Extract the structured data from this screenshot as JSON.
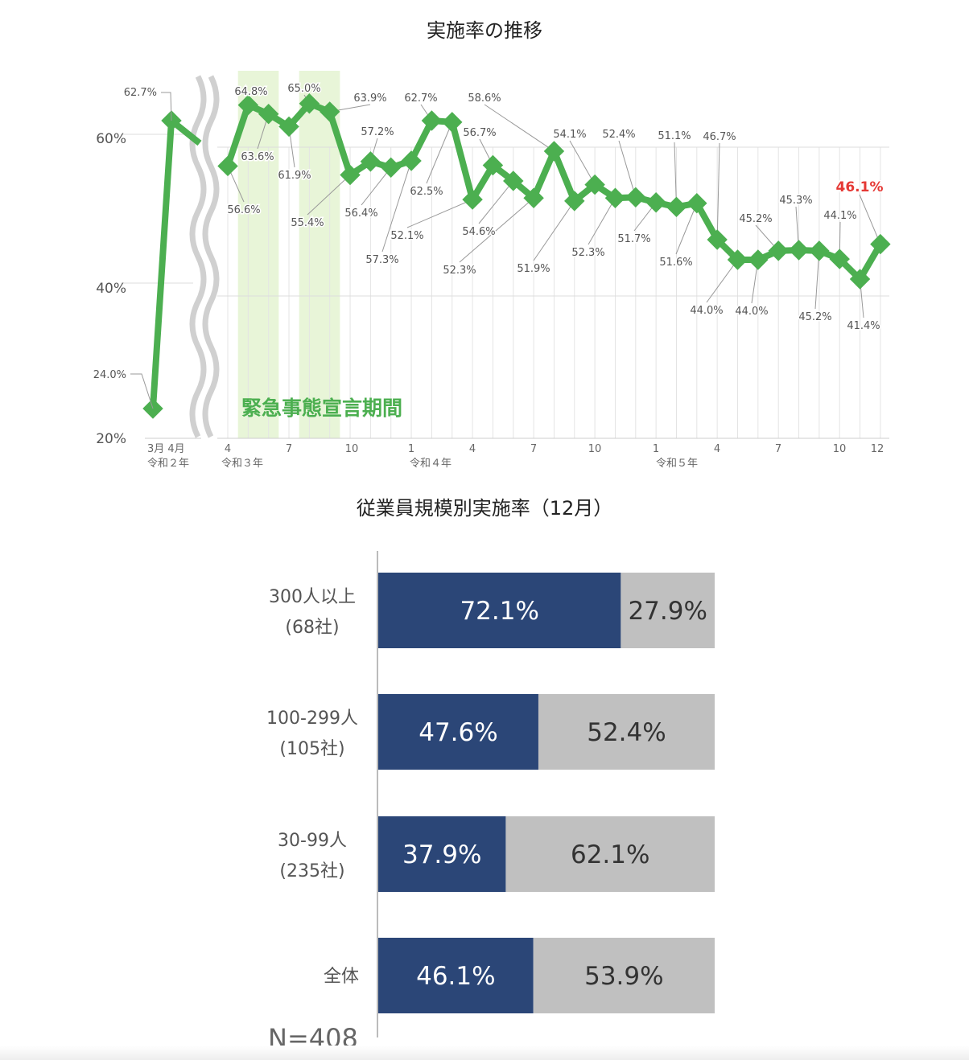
{
  "chart_data": [
    {
      "type": "line",
      "title": "実施率の推移",
      "y_ticks": [
        "20%",
        "40%",
        "60%"
      ],
      "ylim": [
        20,
        70
      ],
      "grid": true,
      "color": "#4caf50",
      "highlight_color": "#e53935",
      "shaded_label": "緊急事態宣言期間",
      "shaded_color": "#e8f5d8",
      "shaded_periods": [
        [
          "令和3年5月",
          "令和3年6月"
        ],
        [
          "令和3年8月",
          "令和3年9月"
        ]
      ],
      "segments": [
        {
          "x": [
            "令和2年3月",
            "令和2年4月"
          ],
          "values": [
            24.0,
            62.7
          ],
          "labels": [
            "24.0%",
            "62.7%"
          ]
        },
        {
          "x": [
            "令和3年4月",
            "令和3年5月",
            "令和3年6月",
            "令和3年7月",
            "令和3年8月",
            "令和3年9月",
            "令和3年10月",
            "令和3年11月",
            "令和3年12月",
            "令和4年1月",
            "令和4年2月",
            "令和4年3月",
            "令和4年4月",
            "令和4年5月",
            "令和4年6月",
            "令和4年7月",
            "令和4年8月",
            "令和4年9月",
            "令和4年10月",
            "令和4年11月",
            "令和4年12月",
            "令和5年1月",
            "令和5年2月",
            "令和5年3月",
            "令和5年4月",
            "令和5年5月",
            "令和5年6月",
            "令和5年7月",
            "令和5年8月",
            "令和5年9月",
            "令和5年10月",
            "令和5年11月",
            "令和5年12月"
          ],
          "values": [
            56.6,
            64.8,
            63.6,
            61.9,
            65.0,
            63.9,
            55.4,
            57.2,
            56.4,
            57.3,
            62.7,
            62.5,
            52.1,
            56.7,
            54.6,
            52.3,
            58.6,
            51.9,
            54.1,
            52.3,
            52.4,
            51.7,
            51.1,
            51.6,
            46.7,
            44.0,
            44.0,
            45.2,
            45.3,
            45.2,
            44.1,
            41.4,
            46.1
          ],
          "labels": [
            "56.6%",
            "64.8%",
            "63.6%",
            "61.9%",
            "65.0%",
            "63.9%",
            "55.4%",
            "57.2%",
            "56.4%",
            "57.3%",
            "62.7%",
            "62.5%",
            "52.1%",
            "56.7%",
            "54.6%",
            "52.3%",
            "58.6%",
            "51.9%",
            "54.1%",
            "52.3%",
            "52.4%",
            "51.7%",
            "51.1%",
            "51.6%",
            "46.7%",
            "44.0%",
            "44.0%",
            "45.2%",
            "45.3%",
            "45.2%",
            "44.1%",
            "41.4%",
            "46.1%"
          ]
        }
      ],
      "x_tick_labels": [
        {
          "month": "3月 4月",
          "year": "令和２年"
        },
        {
          "month": "4",
          "year": "令和３年"
        },
        {
          "month": "7",
          "year": ""
        },
        {
          "month": "10",
          "year": ""
        },
        {
          "month": "1",
          "year": "令和４年"
        },
        {
          "month": "4",
          "year": ""
        },
        {
          "month": "7",
          "year": ""
        },
        {
          "month": "10",
          "year": ""
        },
        {
          "month": "1",
          "year": "令和５年"
        },
        {
          "month": "4",
          "year": ""
        },
        {
          "month": "7",
          "year": ""
        },
        {
          "month": "10",
          "year": ""
        },
        {
          "month": "12",
          "year": ""
        }
      ]
    },
    {
      "type": "bar",
      "orientation": "horizontal-stacked",
      "title": "従業員規模別実施率（12月）",
      "categories": [
        {
          "name": "300人以上",
          "count": "(68社)"
        },
        {
          "name": "100-299人",
          "count": "(105社)"
        },
        {
          "name": "30-99人",
          "count": "(235社)"
        },
        {
          "name": "全体",
          "count": ""
        }
      ],
      "series": [
        {
          "values": [
            72.1,
            47.6,
            37.9,
            46.1
          ],
          "labels": [
            "72.1%",
            "47.6%",
            "37.9%",
            "46.1%"
          ],
          "color": "#2b4677"
        },
        {
          "values": [
            27.9,
            52.4,
            62.1,
            53.9
          ],
          "labels": [
            "27.9%",
            "52.4%",
            "62.1%",
            "53.9%"
          ],
          "color": "#c0c0c0"
        }
      ],
      "xlim": [
        0,
        100
      ],
      "note": "N=408"
    }
  ]
}
